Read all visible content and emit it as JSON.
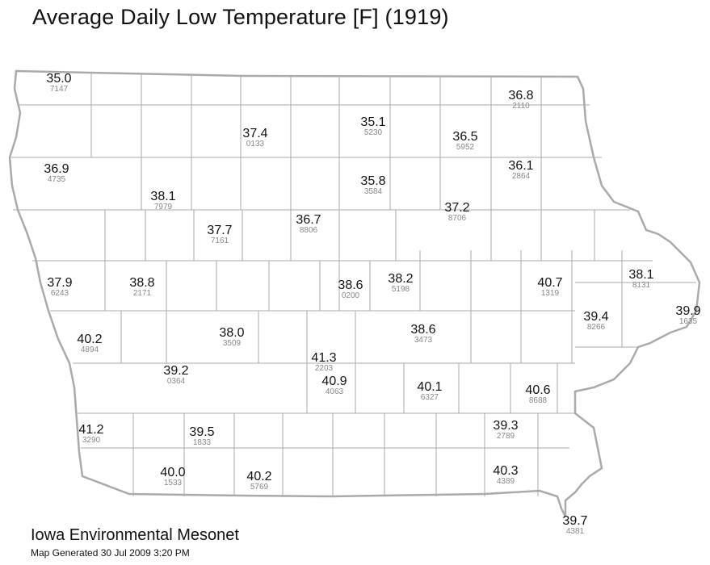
{
  "title": "Average Daily Low Temperature [F] (1919)",
  "footer": {
    "org": "Iowa Environmental Mesonet",
    "generated": "Map Generated 30 Jul 2009 3:20 PM"
  },
  "colors": {
    "border": "#aaaaaa",
    "value_text": "#111111",
    "id_text": "#888888"
  },
  "stations": [
    {
      "value": "35.0",
      "id": "7147"
    },
    {
      "value": "36.8",
      "id": "2110"
    },
    {
      "value": "37.4",
      "id": "0133"
    },
    {
      "value": "35.1",
      "id": "5230"
    },
    {
      "value": "36.5",
      "id": "5952"
    },
    {
      "value": "36.9",
      "id": "4735"
    },
    {
      "value": "36.1",
      "id": "2864"
    },
    {
      "value": "35.8",
      "id": "3584"
    },
    {
      "value": "38.1",
      "id": "7979"
    },
    {
      "value": "37.2",
      "id": "8706"
    },
    {
      "value": "37.7",
      "id": "7161"
    },
    {
      "value": "36.7",
      "id": "8806"
    },
    {
      "value": "37.9",
      "id": "6243"
    },
    {
      "value": "38.8",
      "id": "2171"
    },
    {
      "value": "38.6",
      "id": "0200"
    },
    {
      "value": "38.2",
      "id": "5198"
    },
    {
      "value": "40.7",
      "id": "1319"
    },
    {
      "value": "38.1",
      "id": "8131"
    },
    {
      "value": "39.9",
      "id": "1635"
    },
    {
      "value": "39.4",
      "id": "8266"
    },
    {
      "value": "40.2",
      "id": "4894"
    },
    {
      "value": "38.0",
      "id": "3509"
    },
    {
      "value": "38.6",
      "id": "3473"
    },
    {
      "value": "41.3",
      "id": "2203"
    },
    {
      "value": "39.2",
      "id": "0364"
    },
    {
      "value": "40.9",
      "id": "4063"
    },
    {
      "value": "40.1",
      "id": "6327"
    },
    {
      "value": "40.6",
      "id": "8688"
    },
    {
      "value": "41.2",
      "id": "3290"
    },
    {
      "value": "39.5",
      "id": "1833"
    },
    {
      "value": "39.3",
      "id": "2789"
    },
    {
      "value": "40.0",
      "id": "1533"
    },
    {
      "value": "40.2",
      "id": "5769"
    },
    {
      "value": "40.3",
      "id": "4389"
    },
    {
      "value": "39.7",
      "id": "4381"
    }
  ]
}
